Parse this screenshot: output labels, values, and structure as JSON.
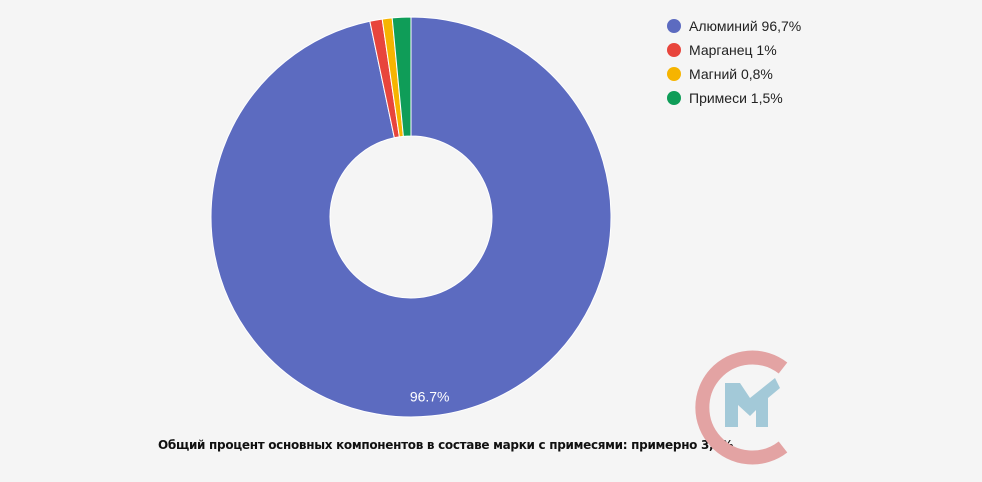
{
  "chart_data": {
    "type": "pie",
    "donut": true,
    "categories": [
      "Алюминий 96,7%",
      "Марганец 1%",
      "Магний 0,8%",
      "Примеси 1,5%"
    ],
    "values": [
      96.7,
      1,
      0.8,
      1.5
    ],
    "colors": [
      "#5c6bc0",
      "#e8453c",
      "#f6b400",
      "#0f9d58"
    ],
    "slice_labels": [
      "96.7%"
    ],
    "legend_position": "right"
  },
  "caption": "Общий процент основных компонентов в составе марки с примесями: примерно 3,3%",
  "logo": {
    "colors": [
      "#e3a3a3",
      "#a3c9d8"
    ]
  }
}
